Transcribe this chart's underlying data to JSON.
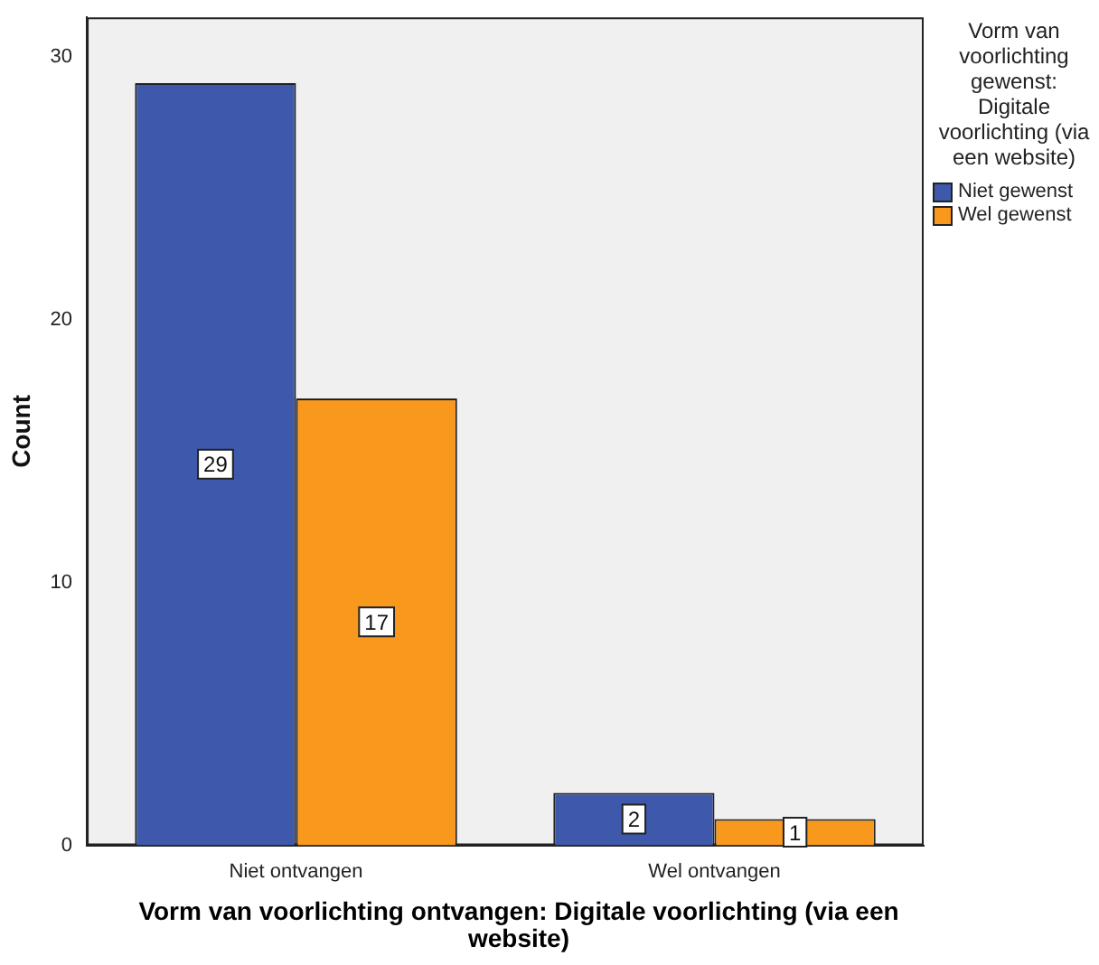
{
  "chart_data": {
    "type": "bar",
    "xlabel": "Vorm van voorlichting ontvangen: Digitale voorlichting (via een website)",
    "ylabel": "Count",
    "legend_title": "Vorm van voorlichting gewenst: Digitale voorlichting (via een website)",
    "categories": [
      "Niet ontvangen",
      "Wel ontvangen"
    ],
    "series": [
      {
        "name": "Niet gewenst",
        "color": "#3e58ac",
        "values": [
          29,
          2
        ]
      },
      {
        "name": "Wel gewenst",
        "color": "#f8981d",
        "values": [
          17,
          1
        ]
      }
    ],
    "ylim": [
      0,
      31.5
    ],
    "yticks": [
      0,
      10,
      20,
      30
    ],
    "grid": false,
    "legend": "right",
    "data_labels": true
  }
}
